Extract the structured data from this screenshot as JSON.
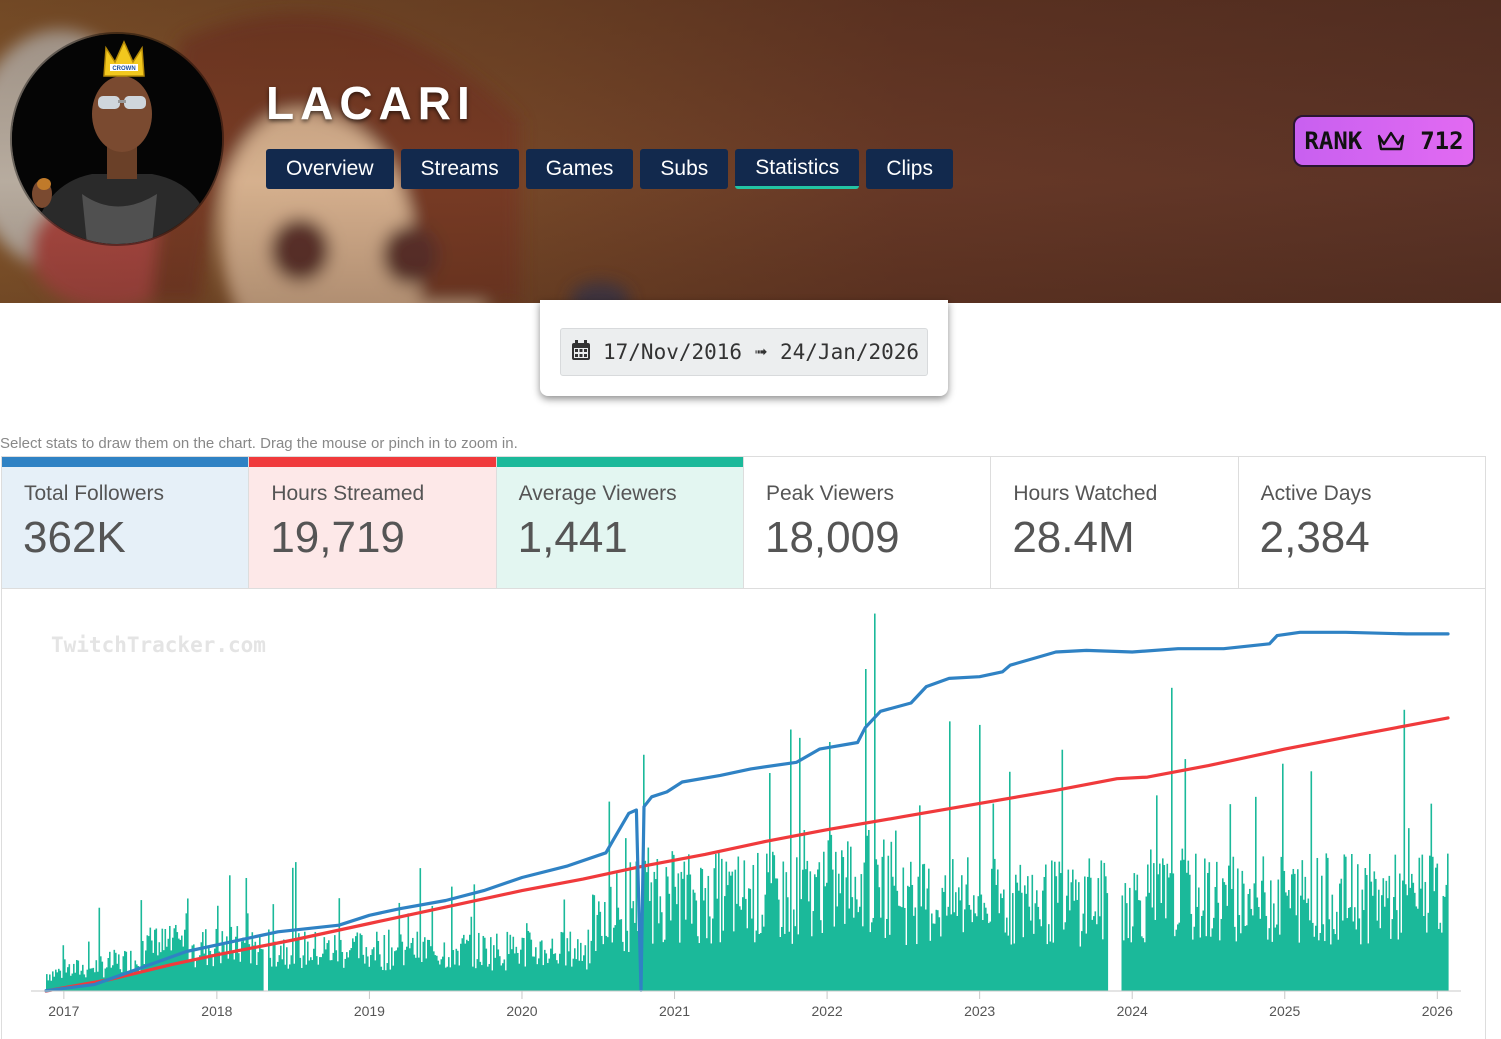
{
  "channel": {
    "name": "LACARI",
    "rank_label": "RANK",
    "rank_value": "712",
    "rank_icon": "crown-icon",
    "avatar_caption": "CROWN"
  },
  "nav": {
    "tabs": [
      "Overview",
      "Streams",
      "Games",
      "Subs",
      "Statistics",
      "Clips"
    ],
    "active": "Statistics"
  },
  "date_range": {
    "icon": "calendar-icon",
    "text": "17/Nov/2016 ➟ 24/Jan/2026"
  },
  "hint": "Select stats to draw them on the chart. Drag the mouse or pinch in to zoom in.",
  "stats": [
    {
      "label": "Total Followers",
      "value": "362K",
      "selected": true,
      "color": "#2f82c4",
      "tint": "#e6f0f8"
    },
    {
      "label": "Hours Streamed",
      "value": "19,719",
      "selected": true,
      "color": "#f03a3c",
      "tint": "#fde8e8"
    },
    {
      "label": "Average Viewers",
      "value": "1,441",
      "selected": true,
      "color": "#1bb99a",
      "tint": "#e3f6f1"
    },
    {
      "label": "Peak Viewers",
      "value": "18,009",
      "selected": false
    },
    {
      "label": "Hours Watched",
      "value": "28.4M",
      "selected": false
    },
    {
      "label": "Active Days",
      "value": "2,384",
      "selected": false
    }
  ],
  "chart_data": {
    "type": "line",
    "watermark": "TwitchTracker.com",
    "x_ticks": [
      "2017",
      "2018",
      "2019",
      "2020",
      "2021",
      "2022",
      "2023",
      "2024",
      "2025",
      "2026"
    ],
    "x_range": [
      2016.88,
      2026.07
    ],
    "grid": false,
    "legend": "none",
    "series": [
      {
        "metric": "Total Followers",
        "kind": "line",
        "color": "#2f82c4",
        "points": [
          [
            2016.88,
            0.2
          ],
          [
            2017.2,
            4
          ],
          [
            2017.5,
            14
          ],
          [
            2017.8,
            24
          ],
          [
            2018.0,
            28
          ],
          [
            2018.4,
            36
          ],
          [
            2018.8,
            40
          ],
          [
            2019.0,
            46
          ],
          [
            2019.2,
            50
          ],
          [
            2019.5,
            55
          ],
          [
            2019.75,
            61
          ],
          [
            2020.0,
            69
          ],
          [
            2020.3,
            76
          ],
          [
            2020.55,
            84
          ],
          [
            2020.6,
            92
          ],
          [
            2020.7,
            108
          ],
          [
            2020.75,
            110
          ],
          [
            2020.78,
            0.5
          ],
          [
            2020.8,
            112
          ],
          [
            2020.85,
            118
          ],
          [
            2020.95,
            121
          ],
          [
            2021.05,
            127
          ],
          [
            2021.3,
            131
          ],
          [
            2021.5,
            135
          ],
          [
            2021.8,
            139
          ],
          [
            2021.95,
            147
          ],
          [
            2022.2,
            151
          ],
          [
            2022.25,
            160
          ],
          [
            2022.35,
            170
          ],
          [
            2022.55,
            175
          ],
          [
            2022.65,
            185
          ],
          [
            2022.8,
            190
          ],
          [
            2023.0,
            191
          ],
          [
            2023.15,
            194
          ],
          [
            2023.2,
            198
          ],
          [
            2023.35,
            202
          ],
          [
            2023.5,
            206
          ],
          [
            2023.7,
            207
          ],
          [
            2024.0,
            206
          ],
          [
            2024.3,
            208
          ],
          [
            2024.6,
            208
          ],
          [
            2024.9,
            211
          ],
          [
            2024.95,
            216
          ],
          [
            2025.1,
            218
          ],
          [
            2025.4,
            218
          ],
          [
            2025.8,
            217
          ],
          [
            2026.07,
            217
          ]
        ]
      },
      {
        "metric": "Hours Streamed",
        "kind": "line",
        "color": "#f03a3c",
        "points": [
          [
            2016.88,
            0
          ],
          [
            2017.3,
            7
          ],
          [
            2017.7,
            16
          ],
          [
            2018.0,
            22
          ],
          [
            2018.5,
            31
          ],
          [
            2019.0,
            41
          ],
          [
            2019.5,
            51
          ],
          [
            2020.0,
            61
          ],
          [
            2020.4,
            68
          ],
          [
            2020.8,
            76
          ],
          [
            2021.2,
            83
          ],
          [
            2021.6,
            91
          ],
          [
            2022.0,
            98
          ],
          [
            2022.5,
            106
          ],
          [
            2023.0,
            114
          ],
          [
            2023.5,
            122
          ],
          [
            2023.9,
            129
          ],
          [
            2024.1,
            130
          ],
          [
            2024.5,
            137
          ],
          [
            2025.0,
            147
          ],
          [
            2025.5,
            156
          ],
          [
            2026.07,
            166
          ]
        ]
      },
      {
        "metric": "Average Viewers",
        "kind": "bars",
        "color": "#1bb99a",
        "gap": [
          2023.84,
          2023.92
        ],
        "spikes": [
          [
            2017.5,
            48
          ],
          [
            2017.6,
            33
          ],
          [
            2017.8,
            41
          ],
          [
            2018.0,
            45
          ],
          [
            2018.2,
            41
          ],
          [
            2018.4,
            31
          ],
          [
            2018.8,
            49
          ],
          [
            2019.25,
            41
          ],
          [
            2020.57,
            100
          ],
          [
            2020.62,
            80
          ],
          [
            2020.9,
            44
          ],
          [
            2021.0,
            55
          ],
          [
            2021.4,
            46
          ],
          [
            2021.85,
            85
          ],
          [
            2021.95,
            68
          ],
          [
            2022.1,
            80
          ],
          [
            2022.25,
            170
          ],
          [
            2022.27,
            85
          ],
          [
            2022.6,
            98
          ],
          [
            2023.1,
            62
          ],
          [
            2023.55,
            66
          ],
          [
            2023.72,
            70
          ],
          [
            2024.5,
            66
          ],
          [
            2024.85,
            73
          ],
          [
            2024.98,
            120
          ],
          [
            2025.05,
            80
          ],
          [
            2025.4,
            70
          ],
          [
            2025.9,
            72
          ],
          [
            2026.06,
            56
          ]
        ]
      }
    ]
  }
}
